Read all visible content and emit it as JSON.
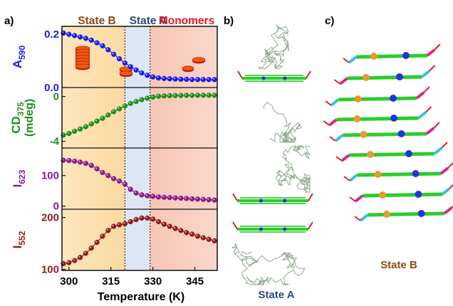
{
  "panel_labels": {
    "a": "a)",
    "b": "b)",
    "c": "c)"
  },
  "state_headers": [
    {
      "text": "State B",
      "color": "#8b4a12"
    },
    {
      "text": "State A",
      "color": "#2e4a78"
    },
    {
      "text": "Monomers",
      "color": "#e0181e"
    }
  ],
  "colors": {
    "state_b_bg": "#fbd9a0",
    "state_a_bg": "#dde6f3",
    "monomers_bg": "#f6c6b4",
    "series_a590": "#1a1aee",
    "series_cd375": "#1e8e1e",
    "series_i623": "#8a1a8a",
    "series_i552": "#8e1c1c"
  },
  "boundaries_K": [
    320,
    329
  ],
  "chart_data": {
    "type": "scatter",
    "xlabel": "Temperature (K)",
    "xlim": [
      297.5,
      353
    ],
    "xticks": [
      300,
      315,
      330,
      345
    ],
    "panels": [
      {
        "ylabel_main": "A",
        "ylabel_sub": "590",
        "ylim": [
          0.0,
          0.23
        ],
        "yticks": [
          {
            "v": 0.0,
            "t": "0.0"
          },
          {
            "v": 0.2,
            "t": "0.2"
          }
        ],
        "color_key": "series_a590",
        "x": [
          298,
          300,
          302,
          304,
          306,
          308,
          310,
          312,
          314,
          316,
          318,
          320,
          322,
          324,
          326,
          328,
          330,
          332,
          334,
          336,
          338,
          340,
          342,
          344,
          346,
          348,
          350,
          352
        ],
        "values": [
          0.205,
          0.2,
          0.195,
          0.19,
          0.185,
          0.178,
          0.168,
          0.157,
          0.142,
          0.125,
          0.108,
          0.092,
          0.078,
          0.066,
          0.055,
          0.046,
          0.04,
          0.036,
          0.034,
          0.033,
          0.032,
          0.031,
          0.031,
          0.03,
          0.03,
          0.03,
          0.03,
          0.03
        ]
      },
      {
        "ylabel_main": "CD",
        "ylabel_sub": "375",
        "ylabel_unit": "(mdeg)",
        "ylim": [
          -4.6,
          0.8
        ],
        "yticks": [
          {
            "v": 0,
            "t": "0"
          },
          {
            "v": -4,
            "t": "-4"
          }
        ],
        "color_key": "series_cd375",
        "x": [
          298,
          300,
          302,
          304,
          306,
          308,
          310,
          312,
          314,
          316,
          318,
          320,
          322,
          324,
          326,
          328,
          330,
          332,
          334,
          336,
          338,
          340,
          342,
          344,
          346,
          348,
          350,
          352
        ],
        "values": [
          -3.45,
          -3.3,
          -3.1,
          -2.9,
          -2.7,
          -2.45,
          -2.2,
          -1.95,
          -1.65,
          -1.35,
          -1.1,
          -0.85,
          -0.62,
          -0.45,
          -0.28,
          -0.15,
          -0.05,
          0.02,
          0.05,
          0.07,
          0.08,
          0.09,
          0.1,
          0.1,
          0.11,
          0.11,
          0.11,
          0.11
        ]
      },
      {
        "ylabel_main": "I",
        "ylabel_sub": "623",
        "ylim": [
          -10,
          190
        ],
        "yticks": [
          {
            "v": 0,
            "t": "0"
          },
          {
            "v": 100,
            "t": "100"
          }
        ],
        "color_key": "series_i623",
        "x": [
          298,
          300,
          302,
          304,
          306,
          308,
          310,
          312,
          314,
          316,
          318,
          320,
          322,
          324,
          326,
          328,
          330,
          332,
          334,
          336,
          338,
          340,
          342,
          344,
          346,
          348,
          350,
          352
        ],
        "values": [
          150,
          149,
          147,
          144,
          140,
          133,
          122,
          110,
          100,
          90,
          82,
          72,
          55,
          43,
          37,
          34,
          32,
          30,
          29,
          28,
          27,
          26,
          25,
          24,
          23,
          22,
          21,
          20
        ]
      },
      {
        "ylabel_main": "I",
        "ylabel_sub": "552",
        "ylim": [
          98,
          216
        ],
        "yticks": [
          {
            "v": 100,
            "t": "100"
          },
          {
            "v": 200,
            "t": "200"
          }
        ],
        "color_key": "series_i552",
        "x": [
          298,
          300,
          302,
          304,
          306,
          308,
          310,
          312,
          314,
          316,
          318,
          320,
          322,
          324,
          326,
          328,
          330,
          332,
          334,
          336,
          338,
          340,
          342,
          344,
          346,
          348,
          350,
          352
        ],
        "values": [
          111,
          113,
          117,
          123,
          131,
          141,
          152,
          164,
          175,
          183,
          186,
          188,
          192,
          196,
          199,
          199,
          197,
          192,
          187,
          183,
          179,
          175,
          171,
          168,
          164,
          161,
          158,
          155
        ]
      }
    ]
  },
  "structure_labels": {
    "state_a": "State A",
    "state_b": "State B"
  }
}
